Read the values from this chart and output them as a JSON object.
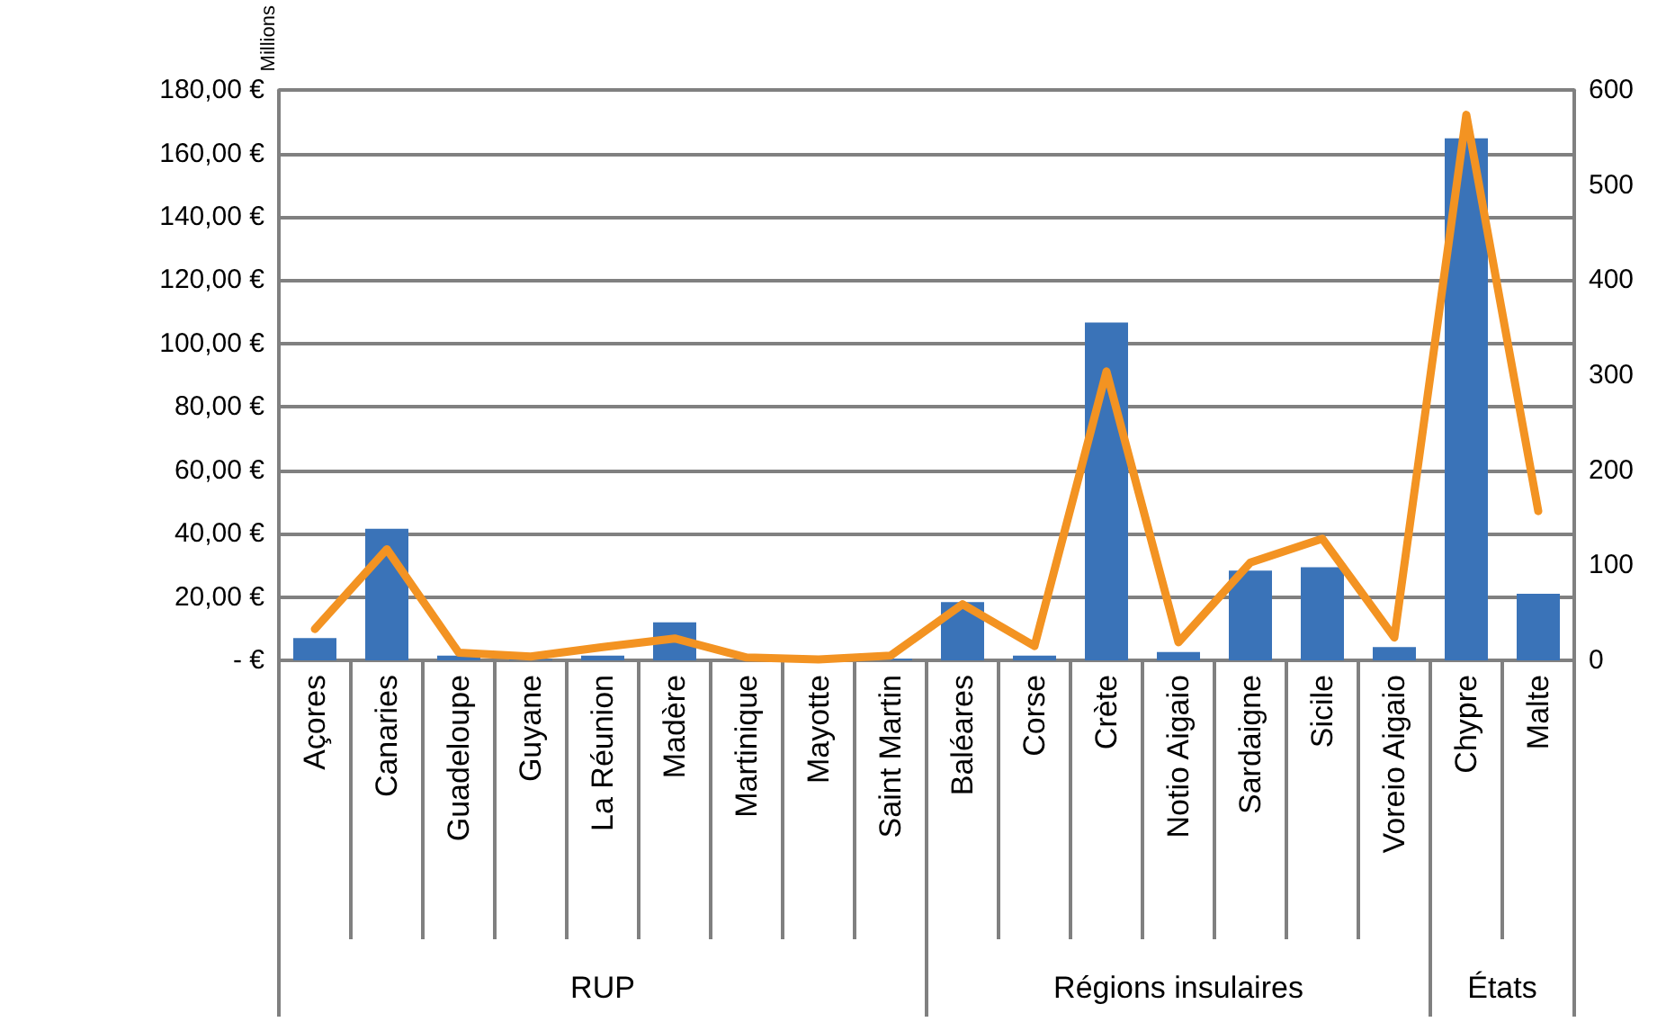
{
  "chart_data": {
    "type": "bar",
    "ylabel": "Millions",
    "categories": [
      "Açores",
      "Canaries",
      "Guadeloupe",
      "Guyane",
      "La Réunion",
      "Madère",
      "Martinique",
      "Mayotte",
      "Saint Martin",
      "Baléares",
      "Corse",
      "Crète",
      "Notio Aigaio",
      "Sardaigne",
      "Sicile",
      "Voreio Aigaio",
      "Chypre",
      "Malte"
    ],
    "series": [
      {
        "color": "#3a73b8",
        "values": [
          7,
          41.5,
          1.5,
          0.3,
          1.5,
          12,
          null,
          null,
          0.5,
          18.4,
          1.5,
          106.6,
          2.6,
          28.3,
          29.4,
          4.2,
          164.8,
          21
        ]
      },
      {
        "type": "line",
        "axis": "y2",
        "color": "#f39322",
        "values": [
          33,
          117,
          8,
          4,
          14,
          23,
          3,
          1,
          5,
          59,
          15,
          304,
          19,
          103,
          128,
          24,
          574,
          157
        ]
      }
    ],
    "ylim": [
      0,
      180
    ],
    "yticks": [
      {
        "value": 0,
        "label": "- €"
      },
      {
        "value": 20,
        "label": "20,00 €"
      },
      {
        "value": 40,
        "label": "40,00 €"
      },
      {
        "value": 60,
        "label": "60,00 €"
      },
      {
        "value": 80,
        "label": "80,00 €"
      },
      {
        "value": 100,
        "label": "100,00 €"
      },
      {
        "value": 120,
        "label": "120,00 €"
      },
      {
        "value": 140,
        "label": "140,00 €"
      },
      {
        "value": 160,
        "label": "160,00 €"
      },
      {
        "value": 180,
        "label": "180,00 €"
      }
    ],
    "y2lim": [
      0,
      600
    ],
    "y2ticks": [
      0,
      100,
      200,
      300,
      400,
      500,
      600
    ],
    "grid": "y",
    "marker": "none",
    "line_style": "solid",
    "annotations": [
      "RUP",
      "Régions insulaires",
      "États"
    ]
  }
}
